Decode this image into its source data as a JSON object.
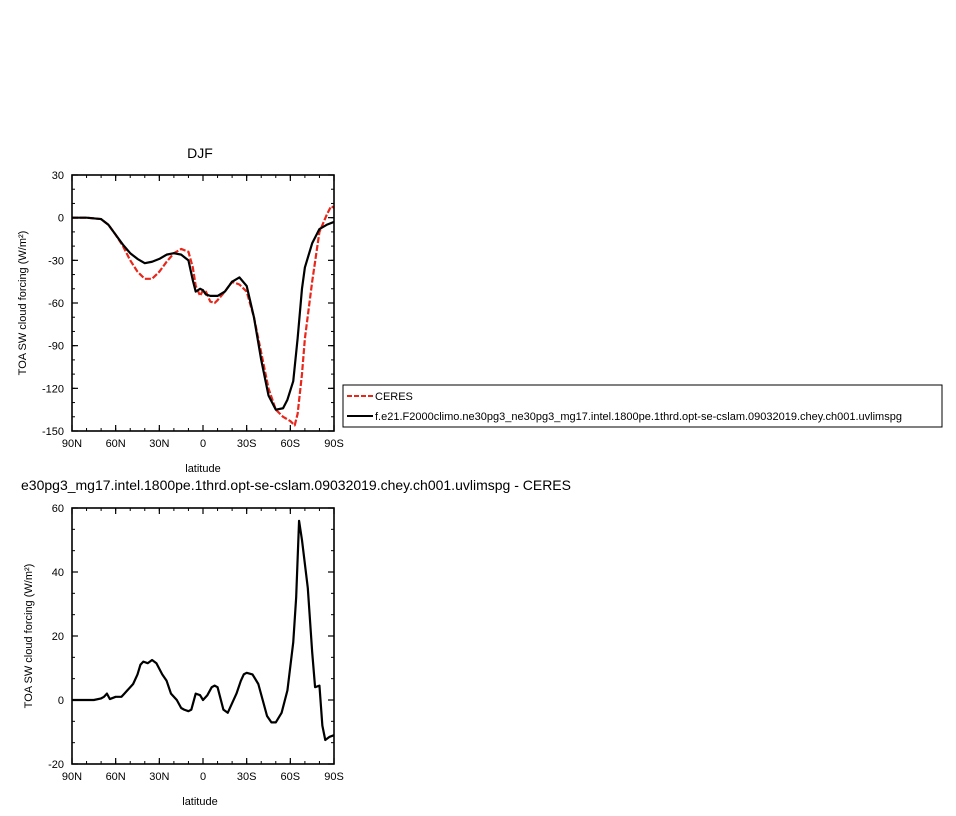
{
  "chart_data": [
    {
      "type": "line",
      "title": "DJF",
      "xlabel": "latitude",
      "ylabel": "TOA SW cloud forcing (W/m²)",
      "xlim": [
        90,
        -90
      ],
      "ylim": [
        -150,
        30
      ],
      "xticks": [
        90,
        60,
        30,
        0,
        -30,
        -60,
        -90
      ],
      "xtick_labels": [
        "90N",
        "60N",
        "30N",
        "0",
        "30S",
        "60S",
        "90S"
      ],
      "yticks": [
        30,
        0,
        -30,
        -60,
        -90,
        -120,
        -150
      ],
      "ytick_labels": [
        "30",
        "0",
        "-30",
        "-60",
        "-90",
        "-120",
        "-150"
      ],
      "legend_position": "right",
      "series": [
        {
          "name": "CERES",
          "color": "#e8261a",
          "dash": "dashed",
          "x": [
            90,
            80,
            70,
            65,
            60,
            55,
            50,
            45,
            40,
            35,
            30,
            25,
            20,
            15,
            10,
            7,
            5,
            2,
            0,
            -2,
            -5,
            -8,
            -10,
            -15,
            -20,
            -25,
            -30,
            -35,
            -40,
            -45,
            -50,
            -55,
            -60,
            -63,
            -65,
            -68,
            -70,
            -75,
            -80,
            -85,
            -88,
            -90
          ],
          "values": [
            0,
            0,
            -1,
            -5,
            -12,
            -20,
            -30,
            -38,
            -43,
            -43,
            -38,
            -31,
            -25,
            -22,
            -24,
            -35,
            -48,
            -55,
            -51,
            -52,
            -59,
            -60,
            -58,
            -52,
            -45,
            -47,
            -52,
            -70,
            -95,
            -120,
            -135,
            -140,
            -143,
            -146,
            -138,
            -110,
            -85,
            -45,
            -10,
            2,
            8,
            7
          ]
        },
        {
          "name": "f.e21.F2000climo.ne30pg3_ne30pg3_mg17.intel.1800pe.1thrd.opt-se-cslam.09032019.chey.ch001.uvlimspg",
          "color": "#000000",
          "dash": "solid",
          "x": [
            90,
            80,
            70,
            65,
            60,
            55,
            50,
            45,
            40,
            35,
            30,
            25,
            20,
            15,
            10,
            7,
            5,
            2,
            0,
            -2,
            -5,
            -8,
            -10,
            -15,
            -20,
            -25,
            -30,
            -35,
            -40,
            -45,
            -50,
            -55,
            -58,
            -62,
            -65,
            -68,
            -70,
            -75,
            -80,
            -85,
            -90
          ],
          "values": [
            0,
            0,
            -1,
            -5,
            -12,
            -19,
            -25,
            -29,
            -32,
            -31,
            -29,
            -26,
            -25,
            -26,
            -30,
            -44,
            -52,
            -50,
            -51,
            -54,
            -55,
            -55,
            -55,
            -52,
            -45,
            -42,
            -48,
            -70,
            -100,
            -125,
            -135,
            -134,
            -128,
            -115,
            -85,
            -50,
            -35,
            -18,
            -8,
            -5,
            -3
          ]
        }
      ]
    },
    {
      "type": "line",
      "title": "e30pg3_mg17.intel.1800pe.1thrd.opt-se-cslam.09032019.chey.ch001.uvlimspg - CERES",
      "xlabel": "latitude",
      "ylabel": "TOA SW cloud forcing (W/m²)",
      "xlim": [
        90,
        -90
      ],
      "ylim": [
        -20,
        60
      ],
      "xticks": [
        90,
        60,
        30,
        0,
        -30,
        -60,
        -90
      ],
      "xtick_labels": [
        "90N",
        "60N",
        "30N",
        "0",
        "30S",
        "60S",
        "90S"
      ],
      "yticks": [
        60,
        40,
        20,
        0,
        -20
      ],
      "ytick_labels": [
        "60",
        "40",
        "20",
        "0",
        "-20"
      ],
      "series": [
        {
          "color": "#000000",
          "dash": "solid",
          "x": [
            90,
            80,
            75,
            70,
            68,
            66,
            64,
            60,
            56,
            54,
            52,
            48,
            45,
            43,
            41,
            38,
            35,
            32,
            28,
            25,
            22,
            18,
            15,
            13,
            10,
            8,
            5,
            2,
            0,
            -3,
            -6,
            -8,
            -10,
            -14,
            -17,
            -20,
            -23,
            -26,
            -28,
            -30,
            -34,
            -38,
            -41,
            -44,
            -47,
            -50,
            -54,
            -58,
            -62,
            -64,
            -66,
            -68,
            -72,
            -75,
            -77,
            -80,
            -82,
            -84,
            -87,
            -90
          ],
          "values": [
            0,
            0,
            0,
            0.5,
            1,
            2,
            0.3,
            1,
            1,
            2,
            3,
            5,
            8,
            11,
            12,
            11.5,
            12.5,
            11.5,
            8,
            6,
            2,
            0,
            -2.5,
            -3,
            -3.5,
            -3,
            2,
            1.5,
            0,
            1.5,
            4,
            4.5,
            4,
            -3,
            -4,
            -1,
            2,
            6,
            8,
            8.5,
            8,
            5,
            0,
            -5,
            -7,
            -7,
            -4,
            3,
            18,
            32,
            56,
            50,
            35,
            15,
            4,
            4.5,
            -8,
            -12.5,
            -11.5,
            -11
          ]
        }
      ]
    }
  ]
}
